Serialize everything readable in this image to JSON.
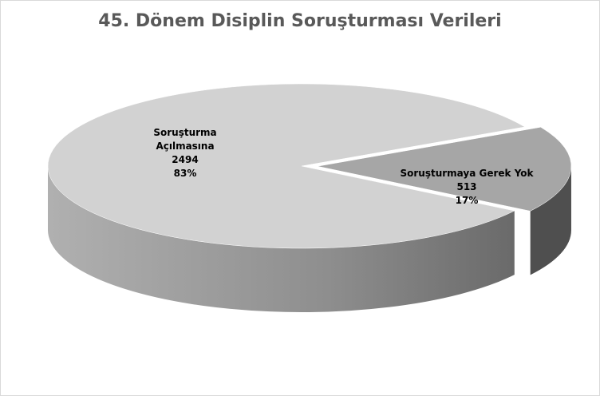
{
  "chart_data": {
    "type": "pie",
    "title": "45. Dönem Disiplin Soruşturması Verileri",
    "categories": [
      "Soruşturma Açılmasına",
      "Soruşturmaya Gerek Yok"
    ],
    "values": [
      2494,
      513
    ],
    "percent_labels": [
      "83%",
      "17%"
    ],
    "colors": [
      "#d2d2d2",
      "#a6a6a6"
    ]
  }
}
